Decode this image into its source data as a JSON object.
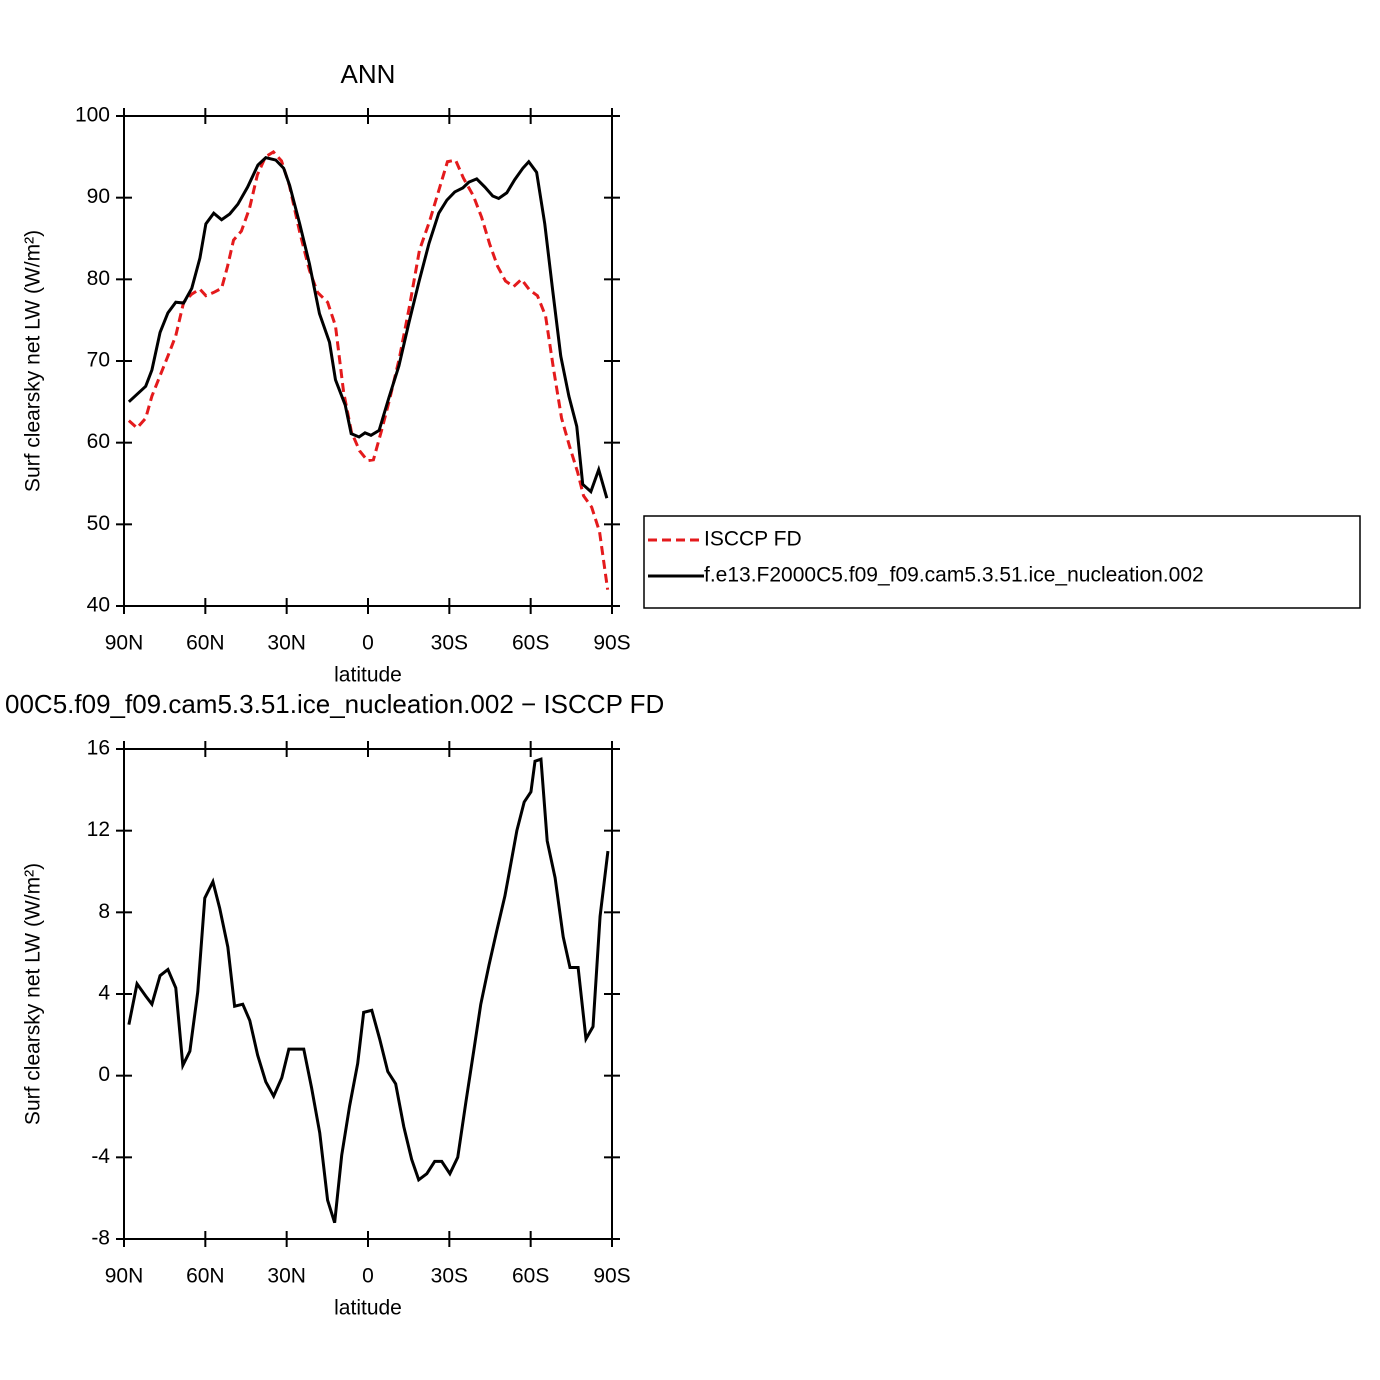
{
  "chart_data": [
    {
      "type": "line",
      "title": "ANN",
      "xlabel": "latitude",
      "ylabel": "Surf clearsky net LW (W/m²)",
      "xlim": [
        90,
        -90
      ],
      "xticks": [
        {
          "value": 90,
          "label": "90N"
        },
        {
          "value": 60,
          "label": "60N"
        },
        {
          "value": 30,
          "label": "30N"
        },
        0,
        {
          "value": -30,
          "label": "30S"
        },
        {
          "value": -60,
          "label": "60S"
        },
        {
          "value": -90,
          "label": "90S"
        }
      ],
      "ylim": [
        40,
        100
      ],
      "yticks": [
        40,
        50,
        60,
        70,
        80,
        90,
        100
      ],
      "legend": "right",
      "series": [
        {
          "name": "ISCCP FD",
          "color": "#e41a1c",
          "style": "dashed",
          "x": [
            88.2,
            85.2,
            82,
            79.7,
            76.7,
            73.8,
            70.9,
            68,
            65,
            62,
            59.8,
            56.9,
            54,
            51.8,
            49.6,
            46.7,
            43.7,
            40.8,
            37.8,
            34.9,
            31.9,
            29,
            25.2,
            21.6,
            18.6,
            14.9,
            12,
            9,
            6.1,
            3.1,
            0.2,
            -2,
            -5,
            -7.9,
            -11.6,
            -15.3,
            -19,
            -22.7,
            -26.4,
            -29.3,
            -32.3,
            -35.2,
            -38.9,
            -41.9,
            -44.9,
            -47.8,
            -50.7,
            -53.7,
            -56.6,
            -59.6,
            -62.5,
            -65.5,
            -68.4,
            -71.4,
            -74.3,
            -77.3,
            -79.5,
            -82.5,
            -85.4,
            -88.4
          ],
          "values": [
            62.7,
            61.8,
            63.0,
            65.7,
            68.2,
            70.6,
            73.1,
            77.2,
            78.2,
            78.8,
            78.0,
            78.4,
            78.9,
            81.6,
            84.8,
            85.9,
            88.7,
            92.8,
            95.0,
            95.6,
            94.5,
            91.5,
            85.8,
            81.1,
            78.4,
            77.2,
            74.3,
            66.2,
            61.3,
            59.0,
            57.8,
            57.9,
            61.5,
            65.2,
            70.4,
            76.7,
            83.6,
            87.1,
            91.2,
            94.4,
            94.6,
            92.4,
            90.2,
            87.6,
            84.3,
            81.6,
            79.8,
            79.1,
            80.0,
            78.7,
            78.0,
            75.5,
            69.1,
            63.0,
            59.6,
            56.4,
            53.5,
            52.1,
            49.1,
            42.0
          ]
        },
        {
          "name": "f.e13.F2000C5.f09_f09.cam5.3.51.ice_nucleation.002",
          "color": "#000000",
          "style": "solid",
          "x": [
            88.2,
            82,
            79.7,
            76.7,
            73.8,
            70.9,
            68,
            65,
            62,
            59.8,
            56.9,
            54,
            51,
            48,
            44.4,
            40.6,
            37.7,
            34,
            31.1,
            28.9,
            25.2,
            21.6,
            17.9,
            14.2,
            12,
            8.4,
            6.2,
            3.3,
            1.1,
            -1.1,
            -4.1,
            -7.7,
            -11.4,
            -15.1,
            -18.8,
            -22.5,
            -26.1,
            -29.1,
            -32,
            -35,
            -37.2,
            -40.1,
            -43.1,
            -46,
            -48.2,
            -51.2,
            -54.1,
            -57.1,
            -59.3,
            -62.2,
            -65.2,
            -68.1,
            -71.1,
            -74.1,
            -77,
            -79.2,
            -82.2,
            -85.1,
            -88.1
          ],
          "values": [
            65.0,
            66.9,
            68.9,
            73.5,
            75.9,
            77.2,
            77.1,
            78.9,
            82.6,
            86.8,
            88.1,
            87.3,
            88.0,
            89.2,
            91.3,
            94.0,
            94.9,
            94.6,
            93.6,
            91.5,
            86.8,
            81.9,
            75.8,
            72.3,
            67.7,
            64.6,
            61.1,
            60.7,
            61.2,
            60.9,
            61.5,
            65.5,
            69.4,
            74.7,
            79.7,
            84.4,
            88.1,
            89.7,
            90.7,
            91.2,
            91.9,
            92.3,
            91.3,
            90.2,
            89.9,
            90.6,
            92.2,
            93.6,
            94.4,
            93.1,
            86.8,
            78.7,
            70.6,
            65.7,
            62.0,
            54.9,
            54.0,
            56.7,
            53.2
          ]
        }
      ]
    },
    {
      "type": "line",
      "title": "00C5.f09_f09.cam5.3.51.ice_nucleation.002 − ISCCP FD",
      "xlabel": "latitude",
      "ylabel": "Surf clearsky net LW (W/m²)",
      "xlim": [
        90,
        -90
      ],
      "xticks": [
        {
          "value": 90,
          "label": "90N"
        },
        {
          "value": 60,
          "label": "60N"
        },
        {
          "value": 30,
          "label": "30N"
        },
        0,
        {
          "value": -30,
          "label": "30S"
        },
        {
          "value": -60,
          "label": "60S"
        },
        {
          "value": -90,
          "label": "90S"
        }
      ],
      "ylim": [
        -8,
        16
      ],
      "yticks": [
        -8,
        -4,
        0,
        4,
        8,
        12,
        16
      ],
      "series": [
        {
          "color": "#000000",
          "style": "solid",
          "x": [
            88.2,
            85.2,
            82,
            79.7,
            76.7,
            73.8,
            70.9,
            68.3,
            65.7,
            62.8,
            60.2,
            57.2,
            54.7,
            51.7,
            49.2,
            46.2,
            43.6,
            40.7,
            37.7,
            34.8,
            31.8,
            29.2,
            26.3,
            23.7,
            20.8,
            17.8,
            14.9,
            12.3,
            9.7,
            6.8,
            3.8,
            1.6,
            -1.4,
            -4.3,
            -7.3,
            -10.2,
            -13.2,
            -16.1,
            -18.7,
            -21.7,
            -24.6,
            -27.2,
            -30.2,
            -33.1,
            -36.1,
            -39.1,
            -41.6,
            -44.6,
            -47.5,
            -50.5,
            -52.3,
            -54.9,
            -57.6,
            -60.1,
            -61.6,
            -63.8,
            -66.1,
            -69,
            -72,
            -74.5,
            -77.5,
            -80.4,
            -83,
            -85.6,
            -88.5
          ],
          "values": [
            2.5,
            4.5,
            3.9,
            3.5,
            4.9,
            5.2,
            4.3,
            0.5,
            1.2,
            4.1,
            8.7,
            9.5,
            8.2,
            6.3,
            3.4,
            3.5,
            2.7,
            1.0,
            -0.3,
            -1.0,
            -0.1,
            1.3,
            1.3,
            1.3,
            -0.6,
            -2.8,
            -6.1,
            -7.2,
            -3.9,
            -1.5,
            0.6,
            3.1,
            3.2,
            1.8,
            0.2,
            -0.4,
            -2.5,
            -4.1,
            -5.1,
            -4.8,
            -4.2,
            -4.2,
            -4.8,
            -4.0,
            -1.3,
            1.3,
            3.5,
            5.4,
            7.1,
            8.8,
            10.1,
            12.0,
            13.4,
            13.9,
            15.4,
            15.5,
            11.5,
            9.7,
            6.8,
            5.3,
            5.3,
            1.8,
            2.4,
            7.8,
            11.0
          ]
        }
      ]
    }
  ]
}
